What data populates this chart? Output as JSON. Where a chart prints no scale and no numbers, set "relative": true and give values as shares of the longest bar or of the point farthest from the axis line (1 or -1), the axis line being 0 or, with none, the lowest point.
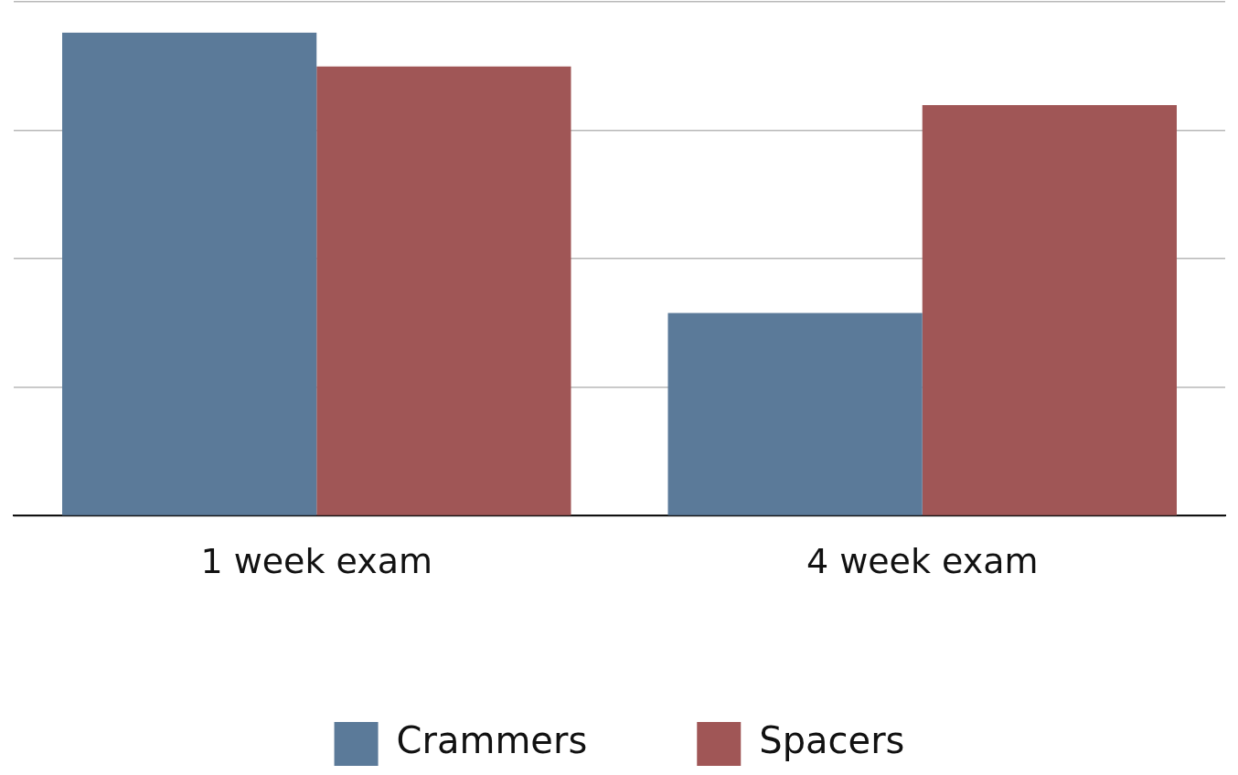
{
  "chart_data": {
    "type": "bar",
    "relative": true,
    "categories": [
      "1 week exam",
      "4 week exam"
    ],
    "series": [
      {
        "name": "Crammers",
        "color": "#5b7a99",
        "values": [
          1,
          0.42
        ]
      },
      {
        "name": "Spacers",
        "color": "#a05656",
        "values": [
          0.93,
          0.85
        ]
      }
    ],
    "grid": "y",
    "legend": "bottom"
  }
}
